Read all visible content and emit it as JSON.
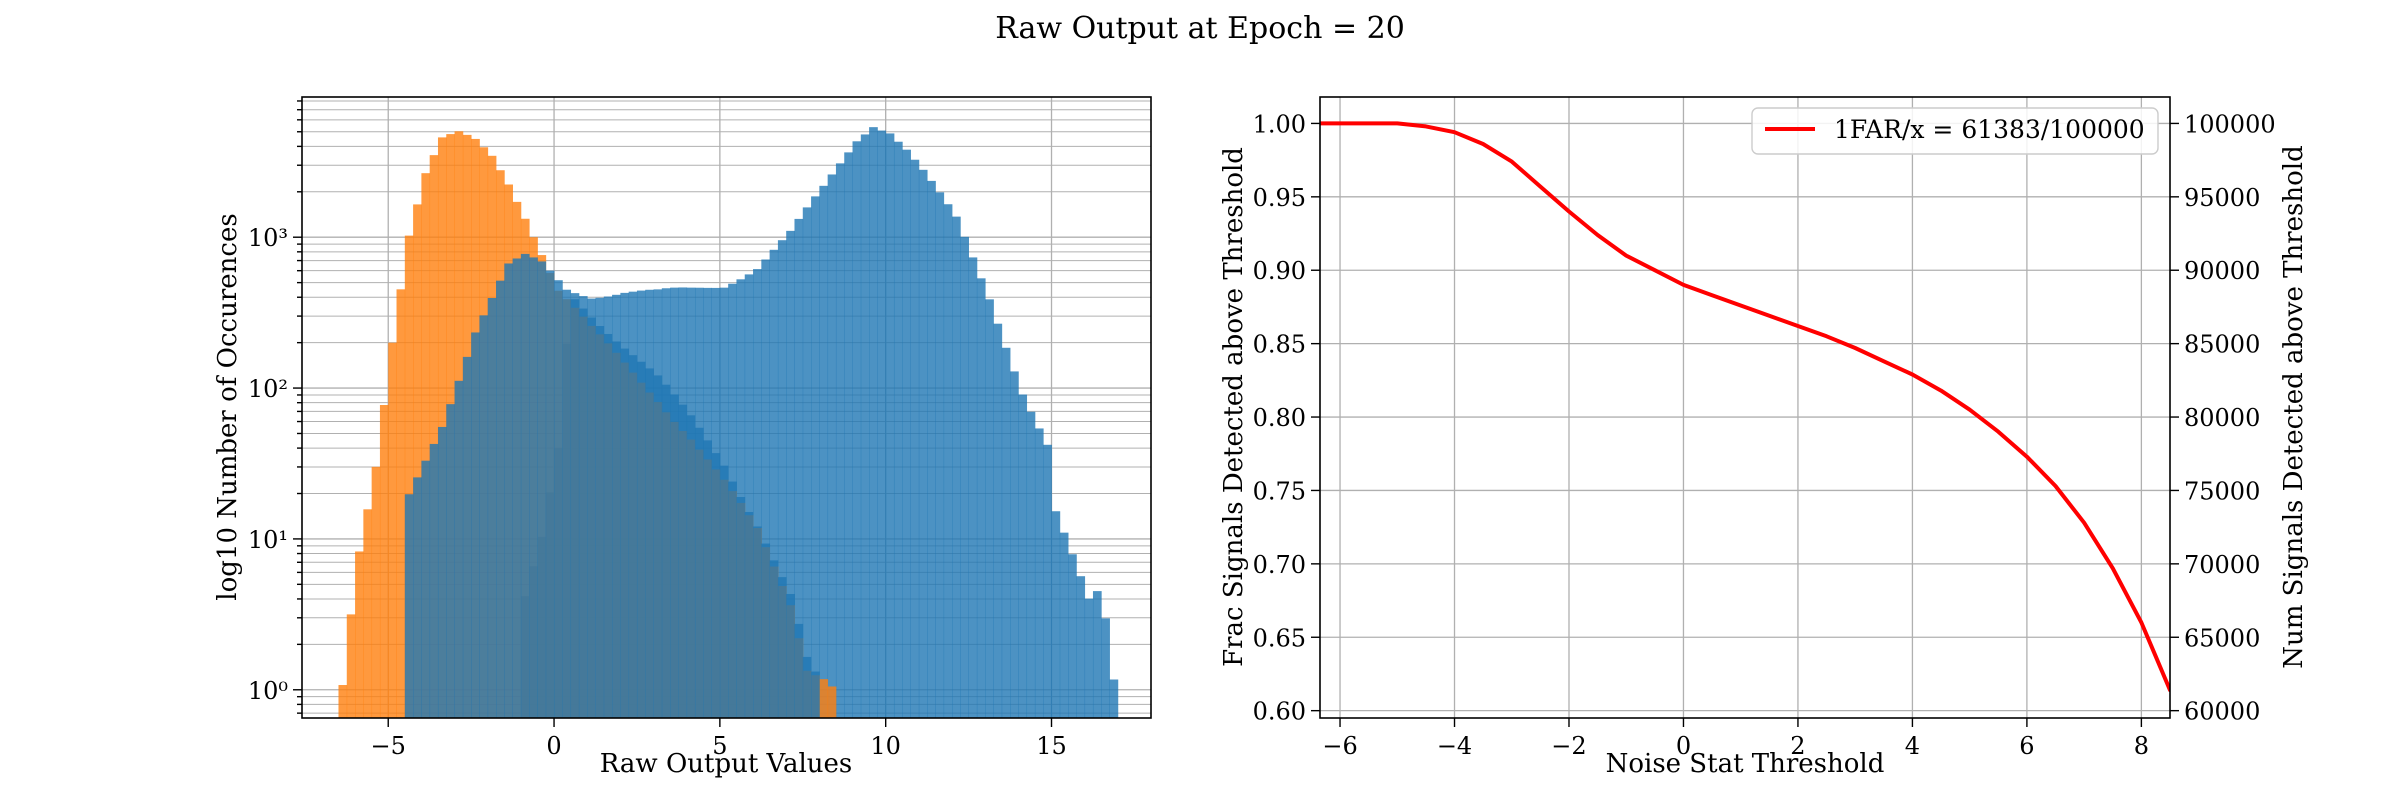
{
  "figure": {
    "title": "Raw Output at Epoch = 20"
  },
  "chart_data": [
    {
      "type": "bar",
      "subtype": "overlaid-histogram",
      "xlabel": "Raw Output Values",
      "ylabel": "log10 Number of Occurences",
      "xlim": [
        -7.6,
        18.0
      ],
      "ylim": [
        0.65,
        8500
      ],
      "yscale": "log",
      "grid": true,
      "xticks": [
        -5,
        0,
        5,
        10,
        15
      ],
      "xtick_labels": [
        "−5",
        "0",
        "5",
        "10",
        "15"
      ],
      "yticks": [
        1,
        10,
        100,
        1000
      ],
      "ytick_labels": [
        "10⁰",
        "10¹",
        "10²",
        "10³"
      ],
      "bin_width": 0.25,
      "series": [
        {
          "color": "#1f77b4",
          "opacity": 0.8,
          "bins": [
            {
              "x": -1.0,
              "y": 4
            },
            {
              "x": -0.5,
              "y": 10
            },
            {
              "x": 0,
              "y": 40
            },
            {
              "x": 0.25,
              "y": 200
            },
            {
              "x": 0.5,
              "y": 440
            },
            {
              "x": 1,
              "y": 410
            },
            {
              "x": 2,
              "y": 420
            },
            {
              "x": 3,
              "y": 410
            },
            {
              "x": 4,
              "y": 430
            },
            {
              "x": 5,
              "y": 460
            },
            {
              "x": 6,
              "y": 600
            },
            {
              "x": 7,
              "y": 1000
            },
            {
              "x": 8,
              "y": 2000
            },
            {
              "x": 9,
              "y": 4300
            },
            {
              "x": 9.5,
              "y": 5500
            },
            {
              "x": 10,
              "y": 5000
            },
            {
              "x": 10.5,
              "y": 3800
            },
            {
              "x": 11,
              "y": 2700
            },
            {
              "x": 12,
              "y": 1300
            },
            {
              "x": 13,
              "y": 400
            },
            {
              "x": 14,
              "y": 100
            },
            {
              "x": 14.75,
              "y": 45
            },
            {
              "x": 15,
              "y": 16
            },
            {
              "x": 15.5,
              "y": 8
            },
            {
              "x": 16,
              "y": 4
            },
            {
              "x": 16.25,
              "y": 4.5
            },
            {
              "x": 16.5,
              "y": 3
            },
            {
              "x": 16.75,
              "y": 1.2
            }
          ]
        },
        {
          "color": "#ff7f0e",
          "opacity": 0.8,
          "bins": [
            {
              "x": -6.5,
              "y": 1
            },
            {
              "x": -6.25,
              "y": 3
            },
            {
              "x": -6,
              "y": 8
            },
            {
              "x": -5.5,
              "y": 30
            },
            {
              "x": -5,
              "y": 200
            },
            {
              "x": -4.5,
              "y": 1000
            },
            {
              "x": -4,
              "y": 2500
            },
            {
              "x": -3.5,
              "y": 4200
            },
            {
              "x": -3,
              "y": 4600
            },
            {
              "x": -2.5,
              "y": 4200
            },
            {
              "x": -2,
              "y": 3400
            },
            {
              "x": -1.5,
              "y": 2300
            },
            {
              "x": -1,
              "y": 1400
            },
            {
              "x": -0.5,
              "y": 800
            },
            {
              "x": 0,
              "y": 450
            },
            {
              "x": 1,
              "y": 250
            },
            {
              "x": 2,
              "y": 150
            },
            {
              "x": 3,
              "y": 90
            },
            {
              "x": 4,
              "y": 50
            },
            {
              "x": 5,
              "y": 25
            },
            {
              "x": 6,
              "y": 12
            },
            {
              "x": 7,
              "y": 4
            },
            {
              "x": 7.5,
              "y": 1.5
            },
            {
              "x": 8,
              "y": 1.3
            },
            {
              "x": 8.5,
              "y": 1
            }
          ]
        },
        {
          "color": "#1f77b4",
          "opacity": 0.8,
          "bins": [
            {
              "x": -4.5,
              "y": 20
            },
            {
              "x": -3.5,
              "y": 60
            },
            {
              "x": -2.5,
              "y": 250
            },
            {
              "x": -1.5,
              "y": 650
            },
            {
              "x": -1,
              "y": 730
            },
            {
              "x": -0.5,
              "y": 650
            },
            {
              "x": 0,
              "y": 500
            },
            {
              "x": 1,
              "y": 300
            },
            {
              "x": 2,
              "y": 180
            },
            {
              "x": 3,
              "y": 110
            },
            {
              "x": 4,
              "y": 60
            },
            {
              "x": 5,
              "y": 30
            },
            {
              "x": 6,
              "y": 12
            },
            {
              "x": 7,
              "y": 4
            },
            {
              "x": 7.25,
              "y": 2.5
            },
            {
              "x": 7.5,
              "y": 1.5
            },
            {
              "x": 7.75,
              "y": 1.2
            }
          ]
        }
      ]
    },
    {
      "type": "line",
      "xlabel": "Noise Stat Threshold",
      "ylabel": "Frac Signals Detected above Threshold",
      "ylabel_right": "Num Signals Detected above Threshold",
      "xlim": [
        -6.35,
        8.5
      ],
      "ylim": [
        0.595,
        1.018
      ],
      "ylim_right": [
        59500,
        101800
      ],
      "grid": true,
      "legend_position": "top-right",
      "xticks": [
        -6,
        -4,
        -2,
        0,
        2,
        4,
        6,
        8
      ],
      "xtick_labels": [
        "−6",
        "−4",
        "−2",
        "0",
        "2",
        "4",
        "6",
        "8"
      ],
      "yticks": [
        0.6,
        0.65,
        0.7,
        0.75,
        0.8,
        0.85,
        0.9,
        0.95,
        1.0
      ],
      "ytick_labels": [
        "0.60",
        "0.65",
        "0.70",
        "0.75",
        "0.80",
        "0.85",
        "0.90",
        "0.95",
        "1.00"
      ],
      "yticks_right": [
        60000,
        65000,
        70000,
        75000,
        80000,
        85000,
        90000,
        95000,
        100000
      ],
      "ytick_labels_right": [
        "60000",
        "65000",
        "70000",
        "75000",
        "80000",
        "85000",
        "90000",
        "95000",
        "100000"
      ],
      "series": [
        {
          "name": "1FAR/x = 61383/100000",
          "color": "#ff0000",
          "x": [
            -6.35,
            -6,
            -5.5,
            -5,
            -4.5,
            -4,
            -3.5,
            -3,
            -2.5,
            -2,
            -1.5,
            -1,
            -0.5,
            0,
            0.5,
            1,
            1.5,
            2,
            2.5,
            3,
            3.5,
            4,
            4.5,
            5,
            5.5,
            6,
            6.5,
            7,
            7.5,
            8,
            8.25,
            8.5
          ],
          "y": [
            1.0,
            1.0,
            1.0,
            1.0,
            0.998,
            0.994,
            0.986,
            0.974,
            0.957,
            0.94,
            0.924,
            0.91,
            0.9,
            0.89,
            0.883,
            0.876,
            0.869,
            0.862,
            0.855,
            0.847,
            0.838,
            0.829,
            0.818,
            0.805,
            0.79,
            0.773,
            0.753,
            0.728,
            0.697,
            0.66,
            0.637,
            0.614
          ]
        }
      ]
    }
  ]
}
